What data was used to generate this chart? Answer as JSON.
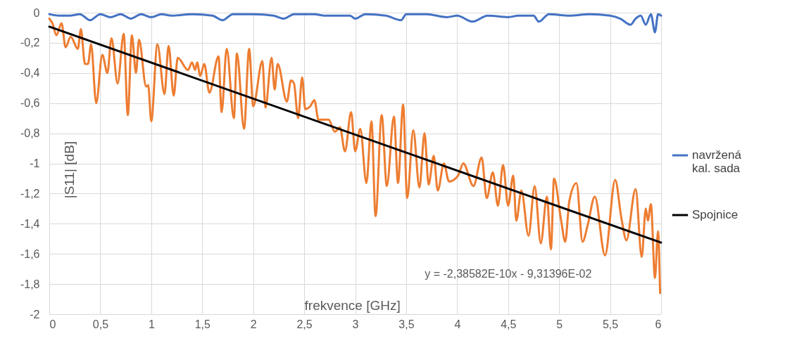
{
  "chart_data": {
    "type": "line",
    "xlabel": "frekvence [GHz]",
    "ylabel": "|S11| [dB]",
    "xlim": [
      0,
      6
    ],
    "xticks": [
      0,
      {
        "value": 0.5,
        "label": "0,5"
      },
      1,
      {
        "value": 1.5,
        "label": "1,5"
      },
      2,
      {
        "value": 2.5,
        "label": "2,5"
      },
      3,
      {
        "value": 3.5,
        "label": "3,5"
      },
      4,
      {
        "value": 4.5,
        "label": "4,5"
      },
      5,
      {
        "value": 5.5,
        "label": "5,5"
      },
      6
    ],
    "ylim": [
      -2,
      0
    ],
    "yticks": [
      -2,
      {
        "value": -1.8,
        "label": "-1,8"
      },
      {
        "value": -1.6,
        "label": "-1,6"
      },
      {
        "value": -1.4,
        "label": "-1,4"
      },
      {
        "value": -1.2,
        "label": "-1,2"
      },
      -1,
      {
        "value": -0.8,
        "label": "-0,8"
      },
      {
        "value": -0.6,
        "label": "-0,6"
      },
      {
        "value": -0.4,
        "label": "-0,4"
      },
      {
        "value": -0.2,
        "label": "-0,2"
      },
      0
    ],
    "grid": true,
    "legend": "right",
    "line_style": "solid",
    "marker": "none",
    "annotations": [
      "y = -2,38582E-10x - 9,31396E-02"
    ],
    "series": [
      {
        "color": "#ed7d31",
        "x": [
          0,
          0.03,
          0.07,
          0.12,
          0.16,
          0.21,
          0.28,
          0.31,
          0.35,
          0.38,
          0.41,
          0.46,
          0.52,
          0.57,
          0.61,
          0.67,
          0.73,
          0.77,
          0.81,
          0.85,
          0.88,
          0.95,
          0.97,
          1.0,
          1.06,
          1.13,
          1.17,
          1.22,
          1.26,
          1.36,
          1.4,
          1.43,
          1.45,
          1.48,
          1.52,
          1.57,
          1.66,
          1.69,
          1.74,
          1.81,
          1.84,
          1.91,
          1.96,
          2.0,
          2.09,
          2.12,
          2.18,
          2.21,
          2.24,
          2.33,
          2.37,
          2.4,
          2.44,
          2.48,
          2.51,
          2.56,
          2.6,
          2.64,
          2.74,
          2.8,
          2.85,
          2.9,
          2.96,
          3.0,
          3.05,
          3.11,
          3.16,
          3.2,
          3.26,
          3.31,
          3.38,
          3.42,
          3.47,
          3.51,
          3.57,
          3.63,
          3.68,
          3.72,
          3.77,
          3.81,
          3.87,
          3.92,
          4.01,
          4.06,
          4.16,
          4.24,
          4.29,
          4.35,
          4.4,
          4.45,
          4.5,
          4.55,
          4.58,
          4.63,
          4.7,
          4.76,
          4.82,
          4.88,
          4.92,
          4.95,
          5.02,
          5.06,
          5.1,
          5.17,
          5.23,
          5.28,
          5.35,
          5.45,
          5.55,
          5.61,
          5.66,
          5.75,
          5.81,
          5.85,
          5.87,
          5.9,
          5.94,
          5.97,
          5.99
        ],
        "values": [
          -0.04,
          -0.07,
          -0.15,
          -0.07,
          -0.23,
          -0.16,
          -0.24,
          -0.11,
          -0.34,
          -0.34,
          -0.21,
          -0.6,
          -0.28,
          -0.4,
          -0.17,
          -0.47,
          -0.14,
          -0.68,
          -0.15,
          -0.4,
          -0.18,
          -0.49,
          -0.48,
          -0.72,
          -0.21,
          -0.54,
          -0.22,
          -0.55,
          -0.3,
          -0.38,
          -0.33,
          -0.38,
          -0.33,
          -0.42,
          -0.34,
          -0.53,
          -0.29,
          -0.66,
          -0.24,
          -0.7,
          -0.27,
          -0.77,
          -0.24,
          -0.62,
          -0.32,
          -0.63,
          -0.3,
          -0.51,
          -0.34,
          -0.59,
          -0.45,
          -0.47,
          -0.7,
          -0.43,
          -0.64,
          -0.62,
          -0.58,
          -0.71,
          -0.71,
          -0.79,
          -0.76,
          -0.92,
          -0.66,
          -0.92,
          -0.77,
          -1.13,
          -0.72,
          -1.35,
          -0.68,
          -1.15,
          -0.69,
          -1.13,
          -0.61,
          -1.23,
          -0.78,
          -1.16,
          -0.8,
          -1.14,
          -0.95,
          -1.18,
          -1.0,
          -1.12,
          -1.08,
          -1.0,
          -1.15,
          -0.96,
          -1.23,
          -1.06,
          -1.28,
          -1.01,
          -1.28,
          -1.08,
          -1.38,
          -1.18,
          -1.48,
          -1.15,
          -1.53,
          -1.22,
          -1.57,
          -1.1,
          -1.38,
          -1.52,
          -1.25,
          -1.13,
          -1.52,
          -1.41,
          -1.22,
          -1.61,
          -1.11,
          -1.36,
          -1.51,
          -1.17,
          -1.62,
          -1.3,
          -1.38,
          -1.27,
          -1.76,
          -1.45,
          -1.86
        ]
      },
      {
        "name": "navržená kal. sada",
        "color": "#4472c4",
        "x": [
          0,
          0.1,
          0.2,
          0.3,
          0.4,
          0.5,
          0.6,
          0.7,
          0.8,
          0.9,
          1.0,
          1.1,
          1.2,
          1.4,
          1.6,
          1.7,
          1.8,
          2.0,
          2.2,
          2.3,
          2.4,
          2.6,
          2.7,
          2.95,
          3.0,
          3.1,
          3.3,
          3.45,
          3.5,
          3.7,
          3.9,
          4.0,
          4.15,
          4.3,
          4.5,
          4.6,
          4.75,
          4.8,
          4.9,
          5.1,
          5.3,
          5.5,
          5.6,
          5.7,
          5.75,
          5.8,
          5.85,
          5.9,
          5.94,
          5.97,
          6.0
        ],
        "values": [
          -0.01,
          -0.02,
          -0.02,
          -0.01,
          -0.05,
          -0.01,
          -0.03,
          -0.01,
          -0.04,
          -0.01,
          -0.03,
          -0.01,
          -0.02,
          -0.01,
          -0.02,
          -0.05,
          -0.01,
          -0.01,
          -0.02,
          -0.04,
          -0.01,
          -0.01,
          -0.02,
          -0.02,
          -0.04,
          -0.01,
          -0.02,
          -0.05,
          -0.01,
          -0.01,
          -0.03,
          -0.02,
          -0.06,
          -0.02,
          -0.03,
          -0.02,
          -0.02,
          -0.06,
          -0.01,
          -0.02,
          -0.01,
          -0.02,
          -0.04,
          -0.08,
          -0.04,
          -0.02,
          -0.08,
          -0.01,
          -0.13,
          -0.01,
          -0.02
        ]
      },
      {
        "name": "Spojnice",
        "color": "#000000",
        "x": [
          0,
          6
        ],
        "values": [
          -0.093,
          -1.525
        ]
      }
    ]
  }
}
